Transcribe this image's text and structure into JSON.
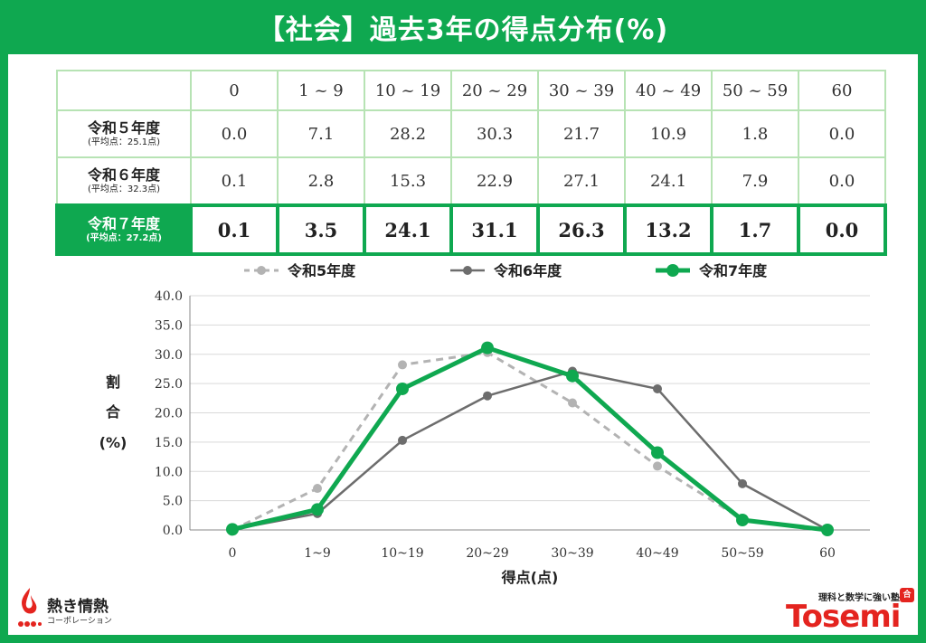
{
  "title": "【社会】過去3年の得点分布(%)",
  "table": {
    "columns": [
      "0",
      "1 ~ 9",
      "10 ~ 19",
      "20 ~ 29",
      "30 ~ 39",
      "40 ~ 49",
      "50 ~ 59",
      "60"
    ],
    "rows": [
      {
        "label": "令和５年度",
        "sub": "(平均点：25.1点)",
        "values": [
          "0.0",
          "7.1",
          "28.2",
          "30.3",
          "21.7",
          "10.9",
          "1.8",
          "0.0"
        ]
      },
      {
        "label": "令和６年度",
        "sub": "(平均点：32.3点)",
        "values": [
          "0.1",
          "2.8",
          "15.3",
          "22.9",
          "27.1",
          "24.1",
          "7.9",
          "0.0"
        ]
      },
      {
        "label": "令和７年度",
        "sub": "(平均点：27.2点)",
        "values": [
          "0.1",
          "3.5",
          "24.1",
          "31.1",
          "26.3",
          "13.2",
          "1.7",
          "0.0"
        ]
      }
    ]
  },
  "chart_data": {
    "type": "line",
    "categories": [
      "0",
      "1~9",
      "10~19",
      "20~29",
      "30~39",
      "40~49",
      "50~59",
      "60"
    ],
    "series": [
      {
        "name": "令和5年度",
        "values": [
          0.0,
          7.1,
          28.2,
          30.3,
          21.7,
          10.9,
          1.8,
          0.0
        ],
        "color": "#b3b3b3",
        "style": "dashed"
      },
      {
        "name": "令和6年度",
        "values": [
          0.1,
          2.8,
          15.3,
          22.9,
          27.1,
          24.1,
          7.9,
          0.0
        ],
        "color": "#6d6d6d",
        "style": "solid"
      },
      {
        "name": "令和7年度",
        "values": [
          0.1,
          3.5,
          24.1,
          31.1,
          26.3,
          13.2,
          1.7,
          0.0
        ],
        "color": "#0fa850",
        "style": "solid-bold"
      }
    ],
    "ylim": [
      0,
      40
    ],
    "yticks": [
      "0.0",
      "5.0",
      "10.0",
      "15.0",
      "20.0",
      "25.0",
      "30.0",
      "35.0",
      "40.0"
    ],
    "ylabel": [
      "割",
      "合",
      "(%)"
    ],
    "xlabel": "得点(点)",
    "grid": true,
    "legend_position": "top"
  },
  "logos": {
    "left_name": "熱き情熱",
    "left_sub": "コーポレーション",
    "right_tagline": "理科と数学に強い塾",
    "right_seal": "合格",
    "right_word": "Tosemi"
  },
  "colors": {
    "accent": "#0fa850",
    "r5": "#b3b3b3",
    "r6": "#6d6d6d",
    "brand_red": "#e4241f"
  }
}
